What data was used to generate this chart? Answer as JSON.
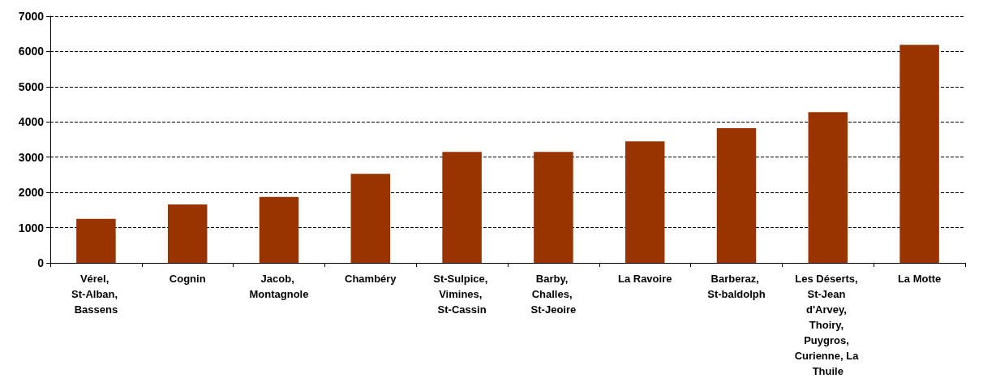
{
  "chart_data": {
    "type": "bar",
    "categories": [
      "Vérel, St-Alban, Bassens",
      "Cognin",
      "Jacob, Montagnole",
      "Chambéry",
      "St-Sulpice, Vimines, St-Cassin",
      "Barby, Challes, St-Jeoire",
      "La Ravoire",
      "Barberaz, St-baldolph",
      "Les Déserts, St-Jean d'Arvey, Thoiry, Puygros, Curienne, La Thuile",
      "La Motte"
    ],
    "values": [
      1250,
      1660,
      1870,
      2530,
      3150,
      3150,
      3450,
      3820,
      4280,
      6190
    ],
    "color": "#993300",
    "ylim": [
      0,
      7000
    ],
    "yticks": [
      0,
      1000,
      2000,
      3000,
      4000,
      5000,
      6000,
      7000
    ],
    "grid": true
  }
}
